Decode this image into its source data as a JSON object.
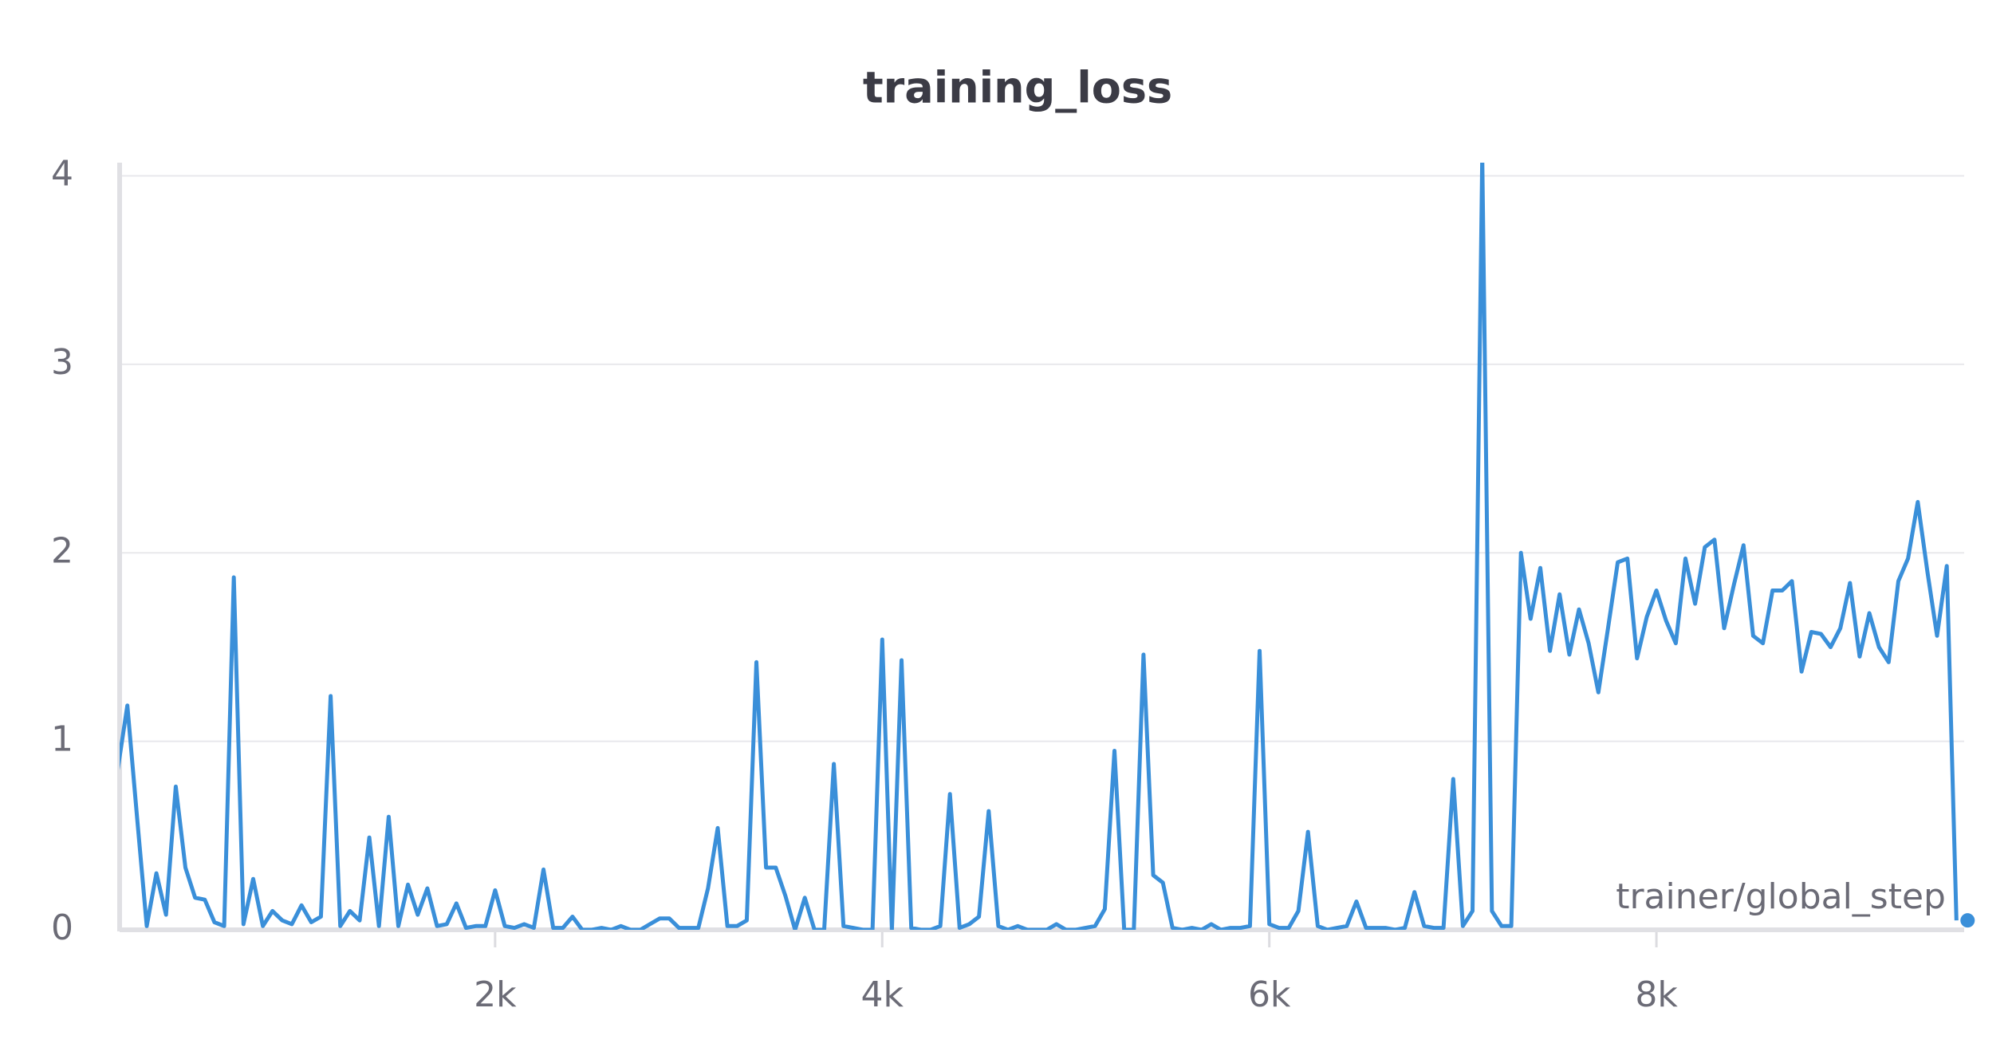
{
  "chart_data": {
    "type": "line",
    "title": "training_loss",
    "x_label": "trainer/global_step",
    "color": "#3a8fd9",
    "x": [
      50,
      100,
      150,
      200,
      250,
      300,
      350,
      400,
      450,
      500,
      550,
      600,
      650,
      700,
      750,
      800,
      850,
      900,
      950,
      1000,
      1050,
      1100,
      1150,
      1200,
      1250,
      1300,
      1350,
      1400,
      1450,
      1500,
      1550,
      1600,
      1650,
      1700,
      1750,
      1800,
      1850,
      1900,
      1950,
      2000,
      2050,
      2100,
      2150,
      2200,
      2250,
      2300,
      2350,
      2400,
      2450,
      2500,
      2550,
      2600,
      2650,
      2700,
      2750,
      2800,
      2850,
      2900,
      2950,
      3000,
      3050,
      3100,
      3150,
      3200,
      3250,
      3300,
      3350,
      3400,
      3450,
      3500,
      3550,
      3600,
      3650,
      3700,
      3750,
      3800,
      3850,
      3900,
      3950,
      4000,
      4050,
      4100,
      4150,
      4200,
      4250,
      4300,
      4350,
      4400,
      4450,
      4500,
      4550,
      4600,
      4650,
      4700,
      4750,
      4800,
      4850,
      4900,
      4950,
      5000,
      5050,
      5100,
      5150,
      5200,
      5250,
      5300,
      5350,
      5400,
      5450,
      5500,
      5550,
      5600,
      5650,
      5700,
      5750,
      5800,
      5850,
      5900,
      5950,
      6000,
      6050,
      6100,
      6150,
      6200,
      6250,
      6300,
      6350,
      6400,
      6450,
      6500,
      6550,
      6600,
      6650,
      6700,
      6750,
      6800,
      6850,
      6900,
      6950,
      7000,
      7050,
      7100,
      7150,
      7200,
      7250,
      7300,
      7350,
      7400,
      7450,
      7500,
      7550,
      7600,
      7650,
      7700,
      7750,
      7800,
      7850,
      7900,
      7950,
      8000,
      8050,
      8100,
      8150,
      8200,
      8250,
      8300,
      8350,
      8400,
      8450,
      8500,
      8550,
      8600,
      8650,
      8700,
      8750,
      8800,
      8850,
      8900,
      8950,
      9000,
      9050,
      9100,
      9150,
      9200,
      9250,
      9300,
      9350,
      9400,
      9450,
      9500,
      9550
    ],
    "values": [
      0.85,
      1.19,
      0.6,
      0.02,
      0.3,
      0.08,
      0.76,
      0.33,
      0.17,
      0.16,
      0.04,
      0.02,
      1.87,
      0.03,
      0.27,
      0.02,
      0.1,
      0.05,
      0.03,
      0.13,
      0.04,
      0.07,
      1.24,
      0.02,
      0.1,
      0.05,
      0.49,
      0.02,
      0.6,
      0.02,
      0.24,
      0.08,
      0.22,
      0.02,
      0.03,
      0.14,
      0.01,
      0.02,
      0.02,
      0.21,
      0.02,
      0.01,
      0.03,
      0.01,
      0.32,
      0.01,
      0.01,
      0.07,
      0,
      0,
      0.01,
      0,
      0.02,
      0,
      0,
      0.03,
      0.06,
      0.06,
      0.01,
      0.01,
      0.01,
      0.22,
      0.54,
      0.02,
      0.02,
      0.05,
      1.42,
      0.33,
      0.33,
      0.18,
      0,
      0.17,
      0,
      0,
      0.88,
      0.02,
      0.01,
      0,
      0,
      1.54,
      0,
      1.43,
      0.01,
      0,
      0,
      0.02,
      0.72,
      0.01,
      0.03,
      0.07,
      0.63,
      0.02,
      0,
      0.02,
      0,
      0,
      0,
      0.03,
      0,
      0,
      0.01,
      0.02,
      0.11,
      0.95,
      0,
      0,
      1.46,
      0.29,
      0.25,
      0.01,
      0,
      0.01,
      0,
      0.03,
      0,
      0.01,
      0.01,
      0.02,
      1.48,
      0.03,
      0.01,
      0.01,
      0.1,
      0.52,
      0.02,
      0,
      0.01,
      0.02,
      0.15,
      0.01,
      0.01,
      0.01,
      0,
      0.01,
      0.2,
      0.02,
      0.01,
      0.01,
      0.8,
      0.02,
      0.1,
      4.1,
      0.1,
      0.02,
      0.02,
      2.0,
      1.65,
      1.92,
      1.48,
      1.78,
      1.46,
      1.7,
      1.52,
      1.26,
      1.6,
      1.95,
      1.97,
      1.44,
      1.66,
      1.8,
      1.64,
      1.52,
      1.97,
      1.73,
      2.03,
      2.07,
      1.6,
      1.83,
      2.04,
      1.56,
      1.52,
      1.8,
      1.8,
      1.85,
      1.37,
      1.58,
      1.57,
      1.5,
      1.6,
      1.84,
      1.45,
      1.68,
      1.5,
      1.42,
      1.85,
      1.97,
      2.27,
      1.9,
      1.56,
      1.93,
      0.05
    ],
    "xlim": [
      60,
      9590
    ],
    "ylim": [
      0,
      4.07
    ],
    "xticks": [
      {
        "value": 2000,
        "label": "2k"
      },
      {
        "value": 4000,
        "label": "4k"
      },
      {
        "value": 6000,
        "label": "6k"
      },
      {
        "value": 8000,
        "label": "8k"
      }
    ],
    "yticks": [
      0,
      1,
      2,
      3,
      4
    ],
    "grid": true
  }
}
